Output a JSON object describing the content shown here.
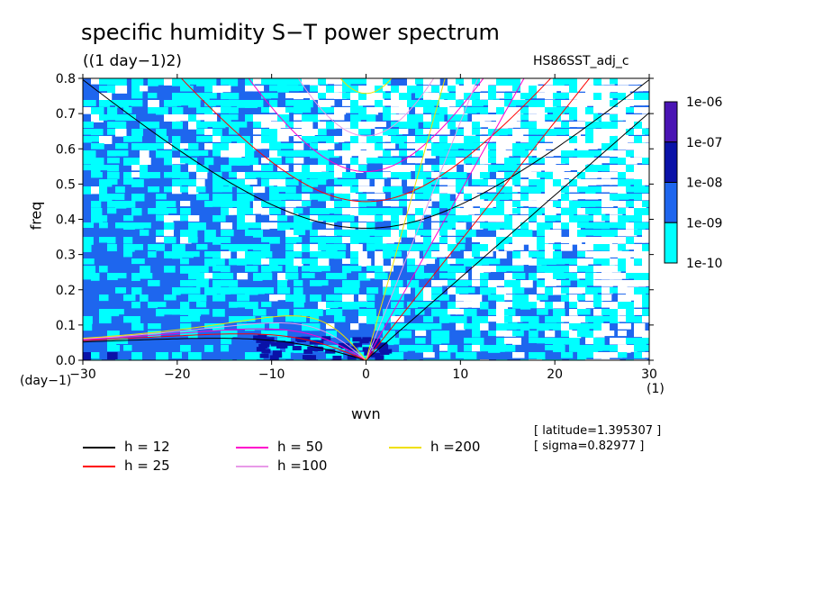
{
  "title": "specific humidity S−T power spectrum",
  "subtitle": "((1 day−1)2)",
  "experiment": "HS86SST_adj_c",
  "ylabel": "freq",
  "xlabel": "wvn",
  "x_unit_label": "(day−1)",
  "x_unit_label_right": "(1)",
  "info": {
    "latitude": "[ latitude=1.395307 ]",
    "sigma": "[ sigma=0.82977 ]"
  },
  "colorbar": {
    "levels": [
      "1e-06",
      "1e-07",
      "1e-08",
      "1e-09",
      "1e-10"
    ],
    "colors": [
      "#4a14b4",
      "#0a12a8",
      "#1e66ee",
      "#00ffff",
      "#ffffff"
    ]
  },
  "legend": [
    {
      "label": "h = 12",
      "color": "#000000"
    },
    {
      "label": "h = 25",
      "color": "#ff0000"
    },
    {
      "label": "h = 50",
      "color": "#ff00cc"
    },
    {
      "label": "h =100",
      "color": "#e89ae8"
    },
    {
      "label": "h =200",
      "color": "#f0e000"
    }
  ],
  "chart_data": {
    "type": "heatmap",
    "title": "specific humidity S−T power spectrum",
    "xlabel": "wvn",
    "ylabel": "freq",
    "xlim": [
      -30,
      30
    ],
    "ylim": [
      0,
      0.8
    ],
    "x_ticks": [
      -30,
      -20,
      -10,
      0,
      10,
      20,
      30
    ],
    "y_ticks": [
      0.0,
      0.1,
      0.2,
      0.3,
      0.4,
      0.5,
      0.6,
      0.7,
      0.8
    ],
    "y_tick_labels": [
      "0.0",
      "0.1",
      "0.2",
      "0.3",
      "0.4",
      "0.5",
      "0.6",
      "0.7",
      "0.8"
    ],
    "x_tick_labels": [
      "−30",
      "−20",
      "−10",
      "0",
      "10",
      "20",
      "30"
    ],
    "contour_levels": [
      1e-10,
      1e-09,
      1e-08,
      1e-07,
      1e-06
    ],
    "dispersion_curves": {
      "equivalent_depths_m": [
        12,
        25,
        50,
        100,
        200
      ],
      "types": [
        "Kelvin",
        "Rossby n=1",
        "inertia-gravity n=1"
      ]
    },
    "legend_placement": "bottom"
  }
}
